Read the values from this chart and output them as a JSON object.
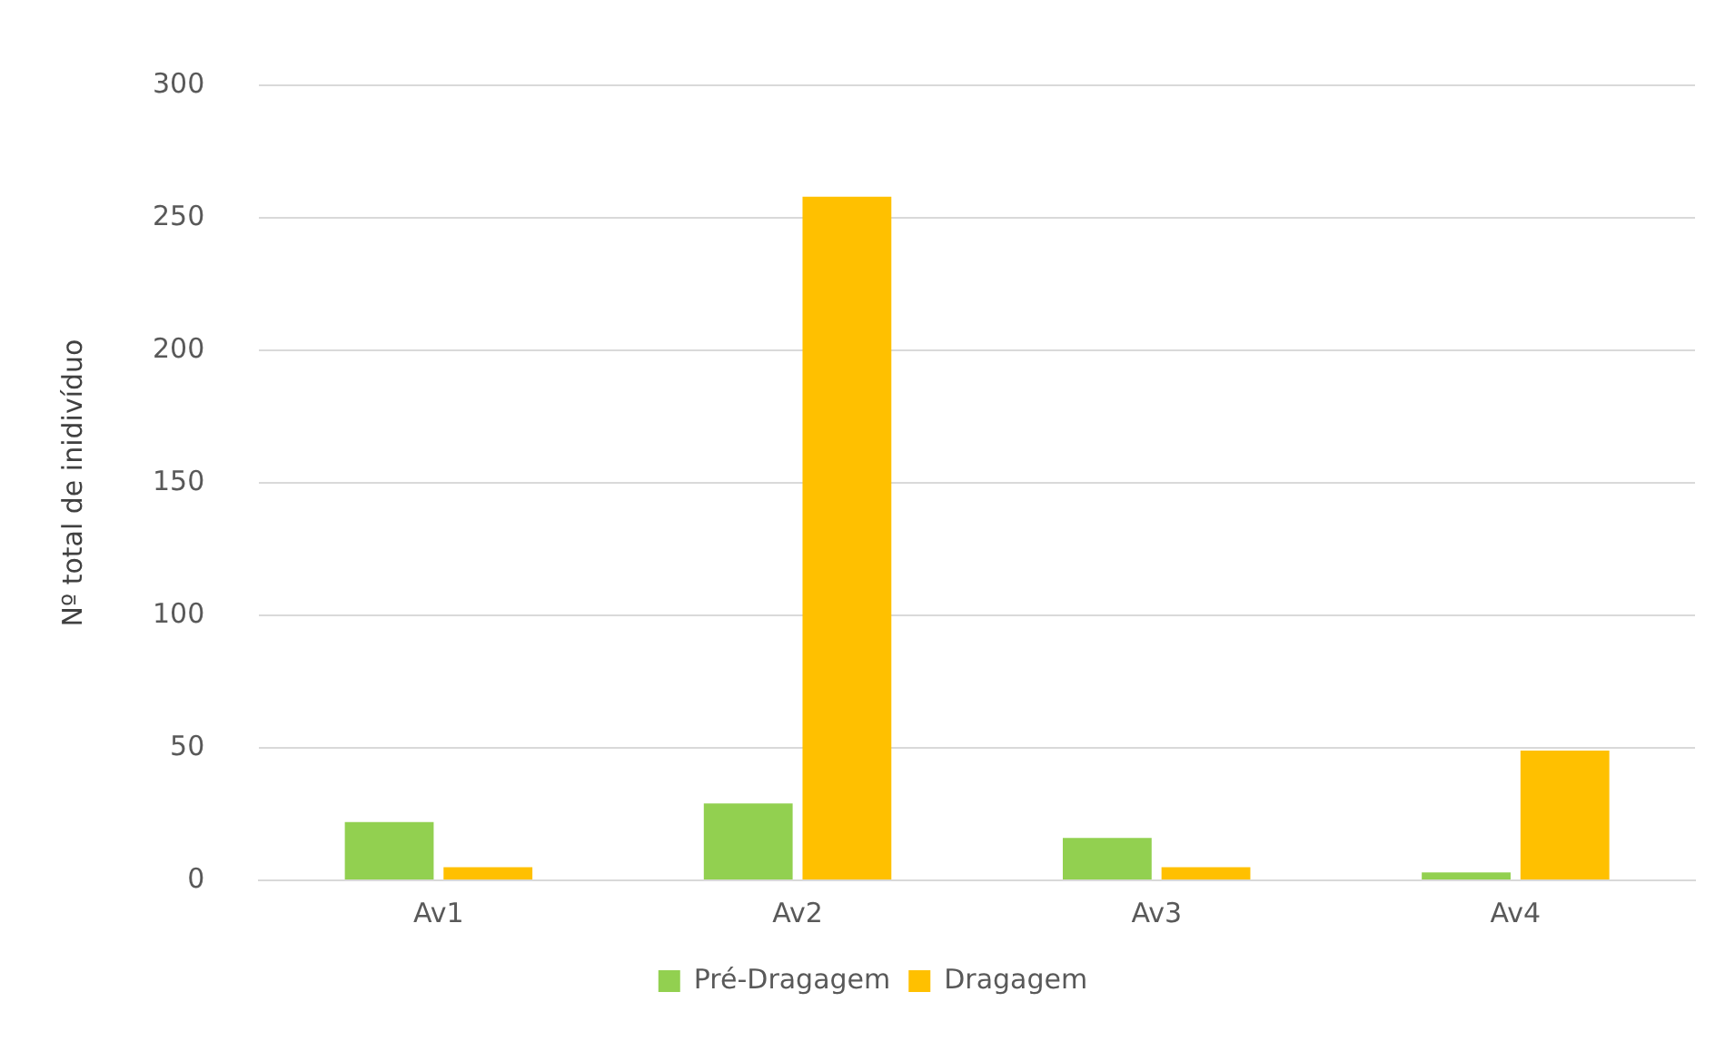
{
  "chart_data": {
    "type": "bar",
    "ylabel": "Nº total de inidivíduo",
    "categories": [
      "Av1",
      "Av2",
      "Av3",
      "Av4"
    ],
    "series": [
      {
        "name": "Pré-Dragagem",
        "color": "#92d050",
        "values": [
          22,
          29,
          16,
          3
        ]
      },
      {
        "name": "Dragagem",
        "color": "#ffc000",
        "values": [
          5,
          258,
          5,
          49
        ]
      }
    ],
    "ylim": [
      0,
      300
    ],
    "yticks": [
      0,
      50,
      100,
      150,
      200,
      250,
      300
    ],
    "grid": "y",
    "legend": "bottom"
  }
}
